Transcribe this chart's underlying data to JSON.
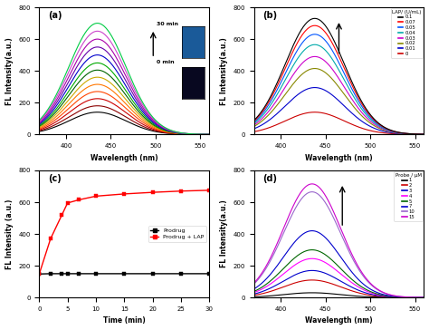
{
  "panel_a": {
    "label": "(a)",
    "xlabel": "Wavelength (nm)",
    "ylabel": "FL Intensity(a.u.)",
    "xlim": [
      370,
      560
    ],
    "ylim": [
      0,
      800
    ],
    "xticks": [
      400,
      450,
      500,
      550
    ],
    "yticks": [
      0,
      200,
      400,
      600,
      800
    ],
    "peak_wl": 435,
    "sigma": 32,
    "peak_values": [
      140,
      180,
      225,
      270,
      315,
      360,
      405,
      450,
      500,
      550,
      600,
      650,
      700
    ],
    "colors": [
      "#000000",
      "#8b0000",
      "#cc0000",
      "#ff4500",
      "#ff7700",
      "#ccaa00",
      "#006400",
      "#00aa00",
      "#0000cc",
      "#6600aa",
      "#aa00aa",
      "#cc44cc",
      "#00cc44"
    ],
    "annotation_30min": "30 min",
    "annotation_0min": "0 min",
    "inset1_color": "#1a5a99",
    "inset2_color": "#080820"
  },
  "panel_b": {
    "label": "(b)",
    "xlabel": "Wavelength (nm)",
    "ylabel": "FL Intensity(a.u.)",
    "xlim": [
      370,
      560
    ],
    "ylim": [
      0,
      800
    ],
    "xticks": [
      400,
      450,
      500,
      550
    ],
    "yticks": [
      0,
      200,
      400,
      600,
      800
    ],
    "peak_wl": 438,
    "sigma": 33,
    "peak_values": [
      140,
      295,
      415,
      490,
      565,
      630,
      685,
      730
    ],
    "colors": [
      "#cc0000",
      "#0000cc",
      "#888800",
      "#cc00cc",
      "#00aaaa",
      "#0055ff",
      "#ff0000",
      "#000000"
    ],
    "legend_title": "LAP/ (U/mL)",
    "legend_labels": [
      "0.1",
      "0.07",
      "0.05",
      "0.04",
      "0.03",
      "0.02",
      "0.01",
      "0"
    ],
    "legend_colors": [
      "#000000",
      "#ff0000",
      "#0055ff",
      "#00aaaa",
      "#cc00cc",
      "#888800",
      "#0000cc",
      "#cc0000"
    ]
  },
  "panel_c": {
    "label": "(c)",
    "xlabel": "Time (min)",
    "ylabel": "FL Intensity (a.u.)",
    "xlim": [
      0,
      30
    ],
    "ylim": [
      0,
      800
    ],
    "xticks": [
      0,
      5,
      10,
      15,
      20,
      25,
      30
    ],
    "yticks": [
      0,
      200,
      400,
      600,
      800
    ],
    "prodrug_x": [
      0,
      2,
      4,
      5,
      7,
      10,
      15,
      20,
      25,
      30
    ],
    "prodrug_y": [
      148,
      150,
      150,
      150,
      150,
      150,
      150,
      150,
      150,
      150
    ],
    "prodrug_lap_x": [
      0,
      2,
      4,
      5,
      7,
      10,
      15,
      20,
      25,
      30
    ],
    "prodrug_lap_y": [
      148,
      370,
      520,
      595,
      615,
      638,
      652,
      662,
      670,
      675
    ],
    "colors_c": [
      "#000000",
      "#ff0000"
    ],
    "legend_labels": [
      "Prodrug",
      "Prodrug + LAP"
    ]
  },
  "panel_d": {
    "label": "(d)",
    "xlabel": "Wavelength (nm)",
    "ylabel": "FL Intensity(a.u.)",
    "xlim": [
      370,
      560
    ],
    "ylim": [
      0,
      800
    ],
    "xticks": [
      400,
      450,
      500,
      550
    ],
    "yticks": [
      0,
      200,
      400,
      600,
      800
    ],
    "peak_wl": 435,
    "sigma": 32,
    "peak_values": [
      30,
      110,
      170,
      245,
      300,
      420,
      665,
      715
    ],
    "colors": [
      "#000000",
      "#cc0000",
      "#0000cc",
      "#ff00ff",
      "#006600",
      "#0000cc",
      "#9966cc",
      "#cc00cc"
    ],
    "legend_title": "Probe / μM",
    "legend_labels": [
      "1",
      "2",
      "3",
      "4",
      "5",
      "7",
      "10",
      "15"
    ],
    "legend_colors": [
      "#000000",
      "#cc0000",
      "#0000cc",
      "#ff00ff",
      "#006600",
      "#0000cc",
      "#9966cc",
      "#cc00cc"
    ]
  }
}
